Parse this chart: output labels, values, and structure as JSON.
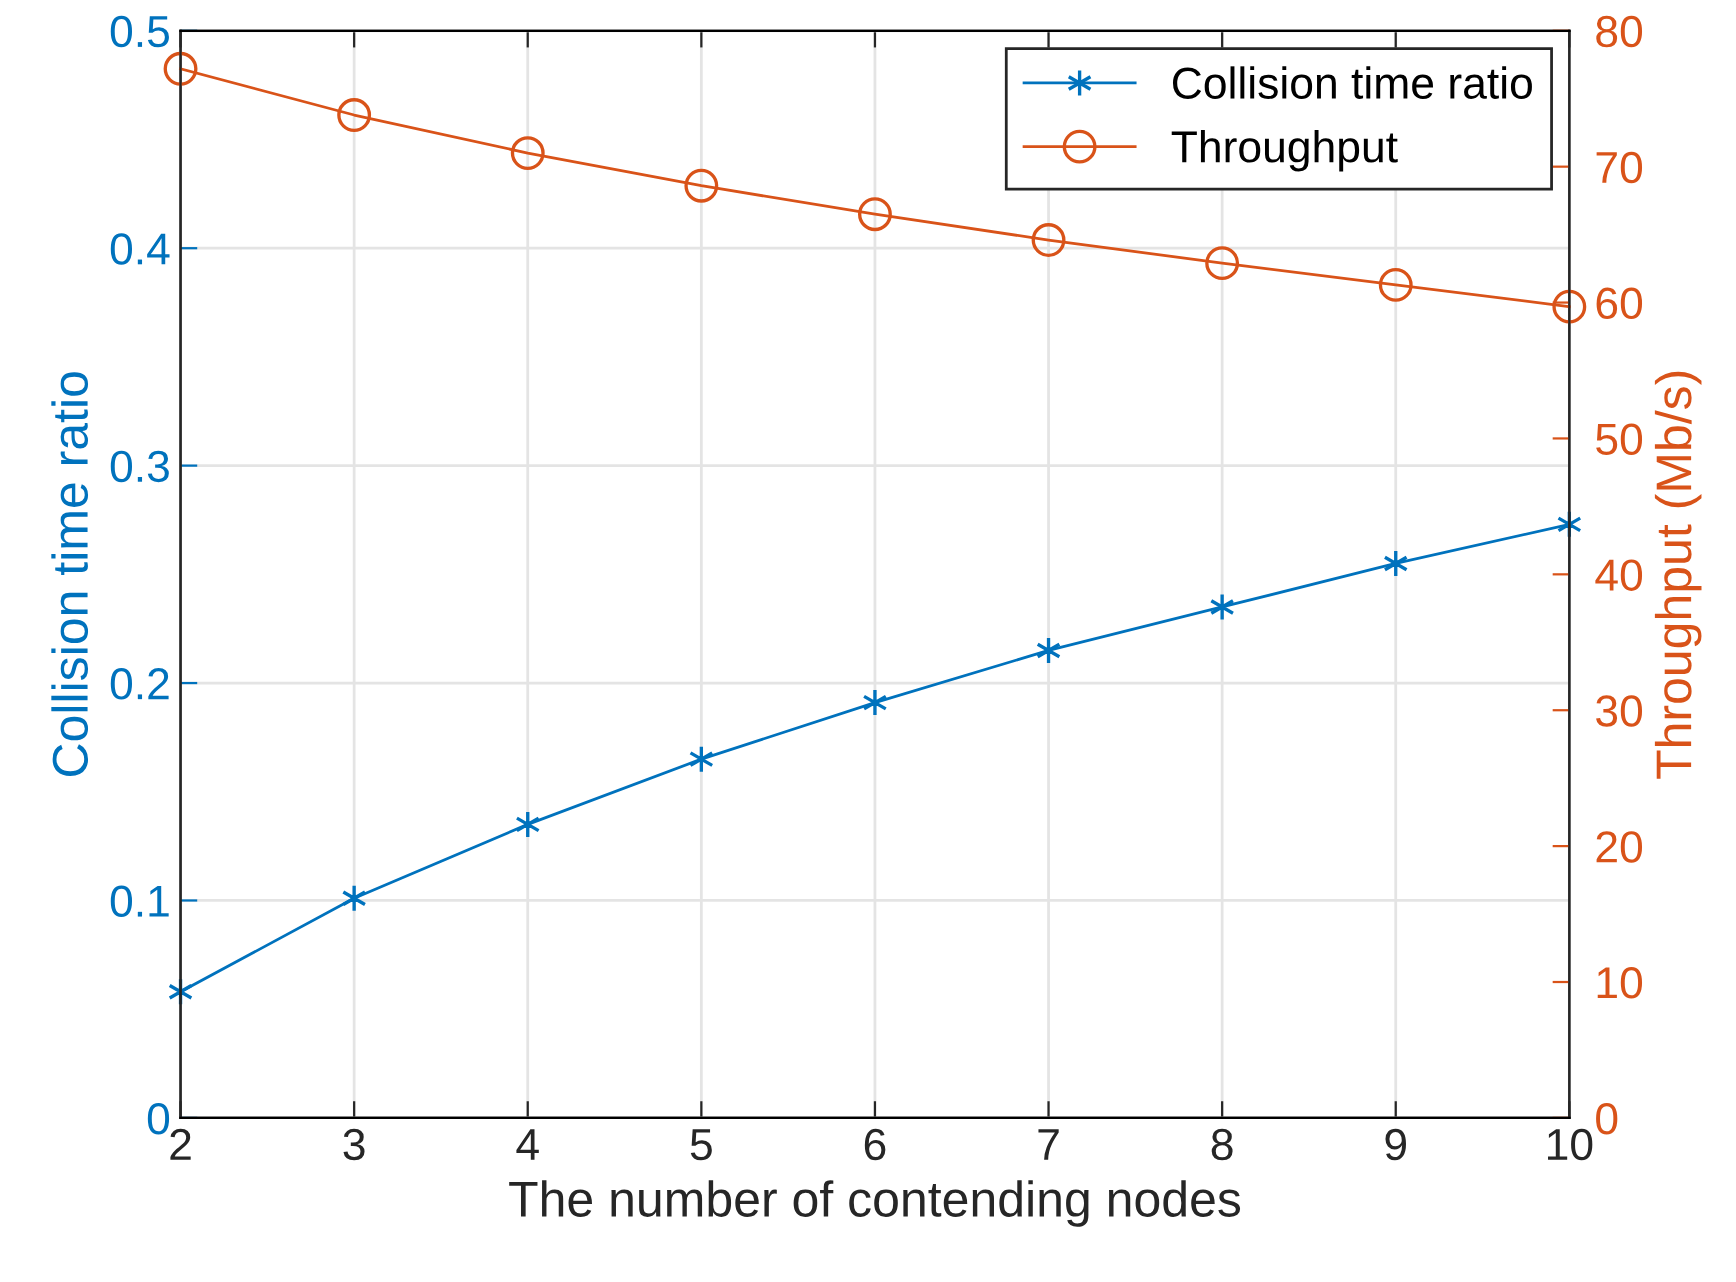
{
  "chart_data": {
    "type": "line",
    "xlabel": "The number of contending nodes",
    "ylabel": "Collision time ratio",
    "y2label": "Throughput (Mb/s)",
    "x": [
      2,
      3,
      4,
      5,
      6,
      7,
      8,
      9,
      10
    ],
    "series": [
      {
        "name": "Collision time ratio",
        "color": "#0072bd",
        "marker": "cross",
        "values": [
          0.058,
          0.101,
          0.135,
          0.165,
          0.191,
          0.215,
          0.235,
          0.255,
          0.273
        ]
      },
      {
        "name": "Throughput",
        "color": "#d95319",
        "marker": "circle",
        "axis": "y2",
        "values": [
          77.2,
          73.8,
          71.0,
          68.6,
          66.5,
          64.6,
          62.9,
          61.3,
          59.7
        ]
      }
    ],
    "xlim": [
      2,
      10
    ],
    "xticks": [
      2,
      3,
      4,
      5,
      6,
      7,
      8,
      9,
      10
    ],
    "ylim": [
      0,
      0.5
    ],
    "yticks": [
      0,
      0.1,
      0.2,
      0.3,
      0.4,
      0.5
    ],
    "y2lim": [
      0,
      80
    ],
    "y2ticks": [
      0,
      10,
      20,
      30,
      40,
      50,
      60,
      70,
      80
    ],
    "grid": true,
    "legend": "top right",
    "line_style": "solid"
  }
}
